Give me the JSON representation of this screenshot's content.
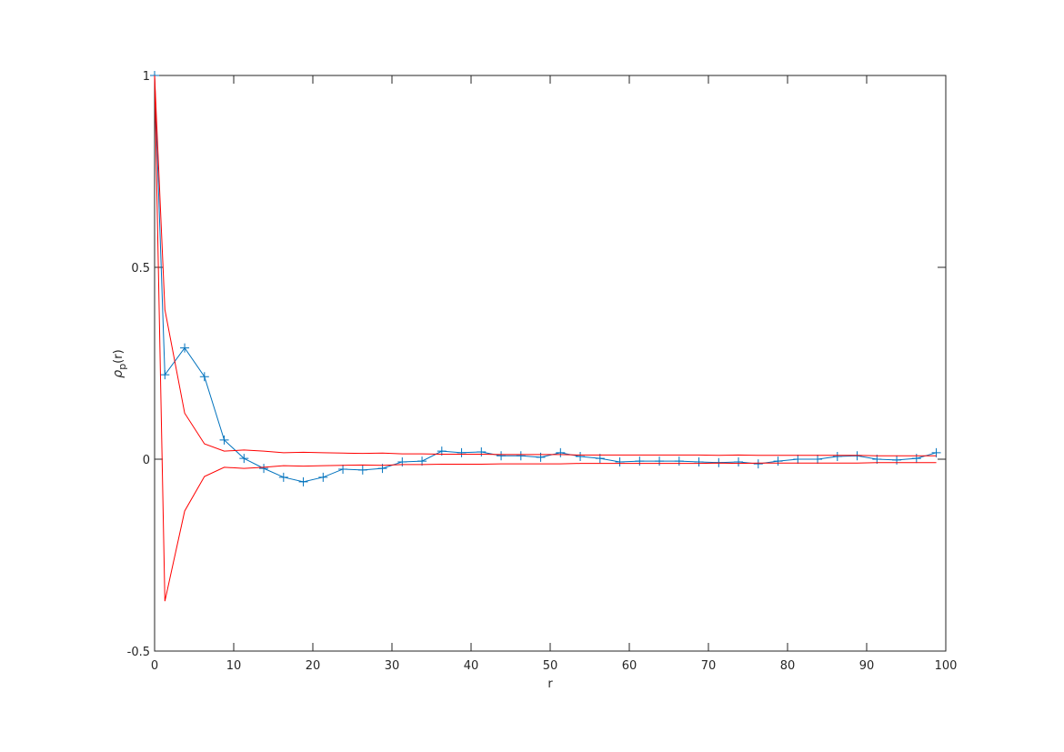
{
  "chart_data": {
    "type": "line",
    "xlabel": "r",
    "ylabel": {
      "symbol": "ρ",
      "subscript": "p",
      "argument": "(r)"
    },
    "x": [
      0,
      1.3,
      3.8,
      6.3,
      8.8,
      11.3,
      13.8,
      16.3,
      18.8,
      21.3,
      23.8,
      26.3,
      28.8,
      31.3,
      33.8,
      36.3,
      38.8,
      41.3,
      43.8,
      46.3,
      48.8,
      51.3,
      53.8,
      56.3,
      58.8,
      61.3,
      63.8,
      66.3,
      68.8,
      71.3,
      73.8,
      76.3,
      78.8,
      81.3,
      83.8,
      86.3,
      88.8,
      91.3,
      93.8,
      96.3,
      98.8
    ],
    "series": [
      {
        "color": "#0072bd",
        "marker": "+",
        "values": [
          1,
          0.22,
          0.29,
          0.215,
          0.05,
          0.002,
          -0.024,
          -0.047,
          -0.059,
          -0.047,
          -0.026,
          -0.028,
          -0.024,
          -0.007,
          -0.005,
          0.021,
          0.017,
          0.019,
          0.009,
          0.009,
          0.005,
          0.017,
          0.007,
          0.002,
          -0.007,
          -0.005,
          -0.005,
          -0.005,
          -0.007,
          -0.009,
          -0.007,
          -0.012,
          -0.005,
          0,
          0,
          0.007,
          0.009,
          0,
          -0.002,
          0.002,
          0.017
        ]
      },
      {
        "color": "#ff0000",
        "values": [
          1,
          0.39,
          0.12,
          0.04,
          0.021,
          0.024,
          0.021,
          0.017,
          0.018,
          0.017,
          0.016,
          0.015,
          0.016,
          0.014,
          0.014,
          0.013,
          0.013,
          0.013,
          0.012,
          0.012,
          0.012,
          0.012,
          0.011,
          0.011,
          0.011,
          0.011,
          0.011,
          0.011,
          0.011,
          0.01,
          0.011,
          0.01,
          0.01,
          0.01,
          0.01,
          0.01,
          0.01,
          0.009,
          0.009,
          0.009,
          0.009
        ]
      },
      {
        "color": "#ff0000",
        "values": [
          1,
          -0.37,
          -0.135,
          -0.045,
          -0.021,
          -0.024,
          -0.021,
          -0.017,
          -0.018,
          -0.017,
          -0.016,
          -0.015,
          -0.016,
          -0.014,
          -0.014,
          -0.013,
          -0.013,
          -0.013,
          -0.012,
          -0.012,
          -0.012,
          -0.012,
          -0.011,
          -0.011,
          -0.011,
          -0.011,
          -0.011,
          -0.011,
          -0.011,
          -0.01,
          -0.011,
          -0.01,
          -0.01,
          -0.01,
          -0.01,
          -0.01,
          -0.01,
          -0.009,
          -0.009,
          -0.009,
          -0.009
        ]
      }
    ],
    "xlim": [
      0,
      100
    ],
    "xticks": [
      0,
      10,
      20,
      30,
      40,
      50,
      60,
      70,
      80,
      90,
      100
    ],
    "ylim": [
      -0.5,
      1
    ],
    "yticks": [
      -0.5,
      0,
      0.5,
      1
    ],
    "box": true
  }
}
